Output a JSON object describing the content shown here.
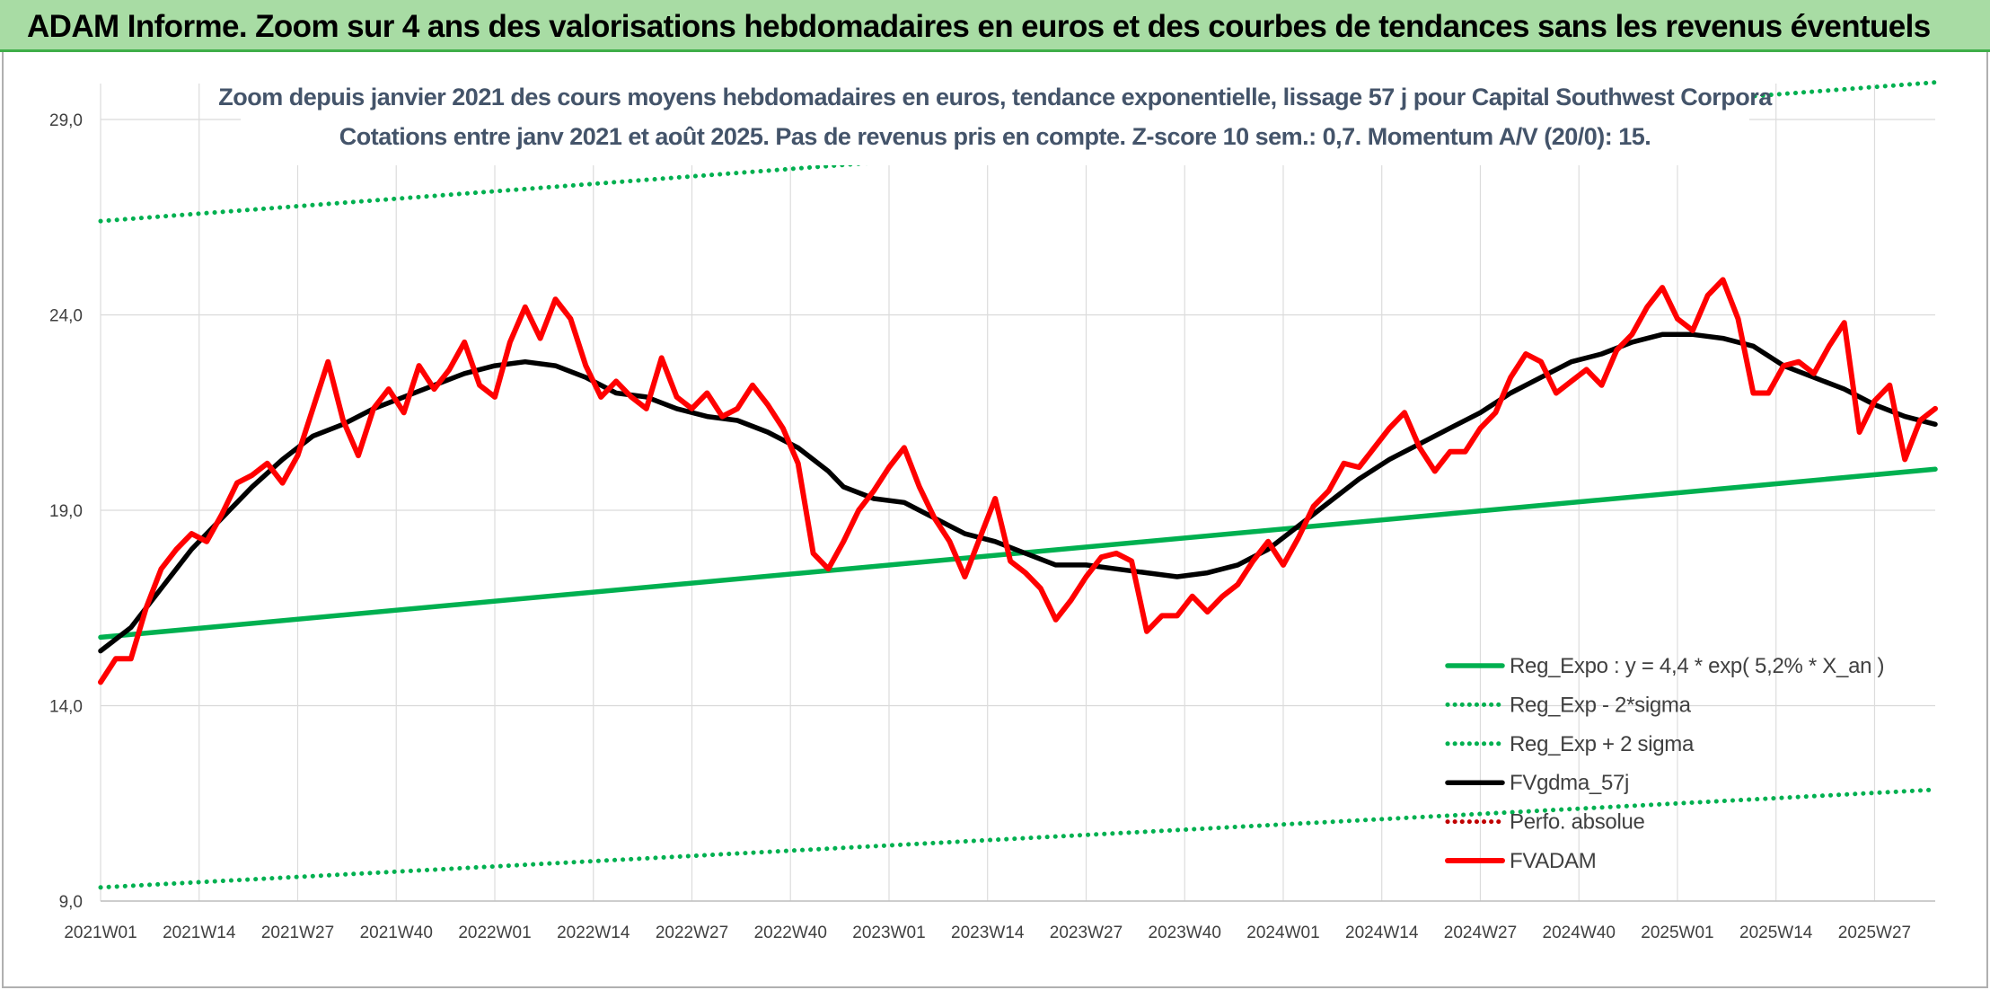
{
  "header": {
    "title": "ADAM Informe. Zoom sur 4 ans des valorisations hebdomadaires en euros et des courbes de tendances sans les revenus éventuels"
  },
  "chart_data": {
    "type": "line",
    "title": "Zoom depuis janvier 2021 des cours moyens hebdomadaires en euros, tendance exponentielle, lissage 57 j pour Capital Southwest Corpora",
    "subtitle": "Cotations entre janv 2021 et août 2025. Pas de revenus pris en compte. Z-score 10 sem.: 0,7. Momentum A/V (20/0): 15.",
    "xlabel": "",
    "ylabel": "",
    "ylim": [
      9,
      29
    ],
    "yticks": [
      "9,0",
      "14,0",
      "19,0",
      "24,0",
      "29,0"
    ],
    "ytick_values": [
      9,
      14,
      19,
      24,
      29
    ],
    "xticks": [
      "2021W01",
      "2021W14",
      "2021W27",
      "2021W40",
      "2022W01",
      "2022W14",
      "2022W27",
      "2022W40",
      "2023W01",
      "2023W14",
      "2023W27",
      "2023W40",
      "2024W01",
      "2024W14",
      "2024W27",
      "2024W40",
      "2025W01",
      "2025W14",
      "2025W27"
    ],
    "xtick_index": [
      0,
      13,
      26,
      39,
      52,
      65,
      78,
      91,
      104,
      117,
      130,
      143,
      156,
      169,
      182,
      195,
      208,
      221,
      234
    ],
    "x_count": 243,
    "grid": "vertical and horizontal",
    "legend_position": "bottom-right",
    "series": [
      {
        "name": "Reg_Expo : y = 4,4 * exp( 5,2% *  X_an )",
        "style": "solid",
        "color": "#00b050",
        "points": [
          [
            0,
            15.75
          ],
          [
            242,
            20.05
          ]
        ]
      },
      {
        "name": "Reg_Exp - 2*sigma",
        "style": "dotted",
        "color": "#00b050",
        "points": [
          [
            0,
            9.35
          ],
          [
            242,
            11.85
          ]
        ]
      },
      {
        "name": "Reg_Exp + 2 sigma",
        "style": "dotted",
        "color": "#00b050",
        "points": [
          [
            0,
            26.4
          ],
          [
            242,
            29.95
          ]
        ]
      },
      {
        "name": "FVgdma_57j",
        "style": "solid",
        "color": "#000000",
        "points": [
          [
            0,
            15.4
          ],
          [
            4,
            16.0
          ],
          [
            8,
            17.0
          ],
          [
            12,
            18.0
          ],
          [
            16,
            18.8
          ],
          [
            20,
            19.6
          ],
          [
            24,
            20.3
          ],
          [
            28,
            20.9
          ],
          [
            32,
            21.2
          ],
          [
            36,
            21.6
          ],
          [
            40,
            21.9
          ],
          [
            44,
            22.2
          ],
          [
            48,
            22.5
          ],
          [
            52,
            22.7
          ],
          [
            56,
            22.8
          ],
          [
            60,
            22.7
          ],
          [
            64,
            22.4
          ],
          [
            68,
            22.0
          ],
          [
            72,
            21.9
          ],
          [
            76,
            21.6
          ],
          [
            80,
            21.4
          ],
          [
            84,
            21.3
          ],
          [
            88,
            21.0
          ],
          [
            92,
            20.6
          ],
          [
            96,
            20.0
          ],
          [
            98,
            19.6
          ],
          [
            102,
            19.3
          ],
          [
            106,
            19.2
          ],
          [
            110,
            18.8
          ],
          [
            114,
            18.4
          ],
          [
            118,
            18.2
          ],
          [
            122,
            17.9
          ],
          [
            126,
            17.6
          ],
          [
            130,
            17.6
          ],
          [
            134,
            17.5
          ],
          [
            138,
            17.4
          ],
          [
            142,
            17.3
          ],
          [
            146,
            17.4
          ],
          [
            150,
            17.6
          ],
          [
            154,
            18.0
          ],
          [
            158,
            18.6
          ],
          [
            162,
            19.2
          ],
          [
            166,
            19.8
          ],
          [
            170,
            20.3
          ],
          [
            174,
            20.7
          ],
          [
            178,
            21.1
          ],
          [
            182,
            21.5
          ],
          [
            186,
            22.0
          ],
          [
            190,
            22.4
          ],
          [
            194,
            22.8
          ],
          [
            198,
            23.0
          ],
          [
            202,
            23.3
          ],
          [
            206,
            23.5
          ],
          [
            210,
            23.5
          ],
          [
            214,
            23.4
          ],
          [
            218,
            23.2
          ],
          [
            222,
            22.7
          ],
          [
            226,
            22.4
          ],
          [
            230,
            22.1
          ],
          [
            234,
            21.7
          ],
          [
            238,
            21.4
          ],
          [
            242,
            21.2
          ]
        ]
      },
      {
        "name": "Perfo. absolue",
        "style": "dotted",
        "color": "#c00000",
        "points": []
      },
      {
        "name": "FVADAM",
        "style": "solid",
        "color": "#ff0000",
        "points": [
          [
            0,
            14.6
          ],
          [
            2,
            15.2
          ],
          [
            4,
            15.2
          ],
          [
            6,
            16.5
          ],
          [
            8,
            17.5
          ],
          [
            10,
            18.0
          ],
          [
            12,
            18.4
          ],
          [
            14,
            18.2
          ],
          [
            16,
            18.9
          ],
          [
            18,
            19.7
          ],
          [
            20,
            19.9
          ],
          [
            22,
            20.2
          ],
          [
            24,
            19.7
          ],
          [
            26,
            20.4
          ],
          [
            28,
            21.6
          ],
          [
            30,
            22.8
          ],
          [
            32,
            21.3
          ],
          [
            34,
            20.4
          ],
          [
            36,
            21.6
          ],
          [
            38,
            22.1
          ],
          [
            40,
            21.5
          ],
          [
            42,
            22.7
          ],
          [
            44,
            22.1
          ],
          [
            46,
            22.6
          ],
          [
            48,
            23.3
          ],
          [
            50,
            22.2
          ],
          [
            52,
            21.9
          ],
          [
            54,
            23.3
          ],
          [
            56,
            24.2
          ],
          [
            58,
            23.4
          ],
          [
            60,
            24.4
          ],
          [
            62,
            23.9
          ],
          [
            64,
            22.7
          ],
          [
            66,
            21.9
          ],
          [
            68,
            22.3
          ],
          [
            70,
            21.9
          ],
          [
            72,
            21.6
          ],
          [
            74,
            22.9
          ],
          [
            76,
            21.9
          ],
          [
            78,
            21.6
          ],
          [
            80,
            22.0
          ],
          [
            82,
            21.4
          ],
          [
            84,
            21.6
          ],
          [
            86,
            22.2
          ],
          [
            88,
            21.7
          ],
          [
            90,
            21.1
          ],
          [
            92,
            20.2
          ],
          [
            94,
            17.9
          ],
          [
            96,
            17.5
          ],
          [
            98,
            18.2
          ],
          [
            100,
            19.0
          ],
          [
            102,
            19.5
          ],
          [
            104,
            20.1
          ],
          [
            106,
            20.6
          ],
          [
            108,
            19.6
          ],
          [
            110,
            18.8
          ],
          [
            112,
            18.2
          ],
          [
            114,
            17.3
          ],
          [
            116,
            18.3
          ],
          [
            118,
            19.3
          ],
          [
            120,
            17.7
          ],
          [
            122,
            17.4
          ],
          [
            124,
            17.0
          ],
          [
            126,
            16.2
          ],
          [
            128,
            16.7
          ],
          [
            130,
            17.3
          ],
          [
            132,
            17.8
          ],
          [
            134,
            17.9
          ],
          [
            136,
            17.7
          ],
          [
            138,
            15.9
          ],
          [
            140,
            16.3
          ],
          [
            142,
            16.3
          ],
          [
            144,
            16.8
          ],
          [
            146,
            16.4
          ],
          [
            148,
            16.8
          ],
          [
            150,
            17.1
          ],
          [
            152,
            17.7
          ],
          [
            154,
            18.2
          ],
          [
            156,
            17.6
          ],
          [
            158,
            18.3
          ],
          [
            160,
            19.1
          ],
          [
            162,
            19.5
          ],
          [
            164,
            20.2
          ],
          [
            166,
            20.1
          ],
          [
            168,
            20.6
          ],
          [
            170,
            21.1
          ],
          [
            172,
            21.5
          ],
          [
            174,
            20.6
          ],
          [
            176,
            20.0
          ],
          [
            178,
            20.5
          ],
          [
            180,
            20.5
          ],
          [
            182,
            21.1
          ],
          [
            184,
            21.5
          ],
          [
            186,
            22.4
          ],
          [
            188,
            23.0
          ],
          [
            190,
            22.8
          ],
          [
            192,
            22.0
          ],
          [
            194,
            22.3
          ],
          [
            196,
            22.6
          ],
          [
            198,
            22.2
          ],
          [
            200,
            23.1
          ],
          [
            202,
            23.5
          ],
          [
            204,
            24.2
          ],
          [
            206,
            24.7
          ],
          [
            208,
            23.9
          ],
          [
            210,
            23.6
          ],
          [
            212,
            24.5
          ],
          [
            214,
            24.9
          ],
          [
            216,
            23.9
          ],
          [
            218,
            22.0
          ],
          [
            220,
            22.0
          ],
          [
            222,
            22.7
          ],
          [
            224,
            22.8
          ],
          [
            226,
            22.5
          ],
          [
            228,
            23.2
          ],
          [
            230,
            23.8
          ],
          [
            232,
            21.0
          ],
          [
            234,
            21.8
          ],
          [
            236,
            22.2
          ],
          [
            238,
            20.3
          ],
          [
            240,
            21.3
          ],
          [
            242,
            21.6
          ]
        ]
      }
    ]
  }
}
